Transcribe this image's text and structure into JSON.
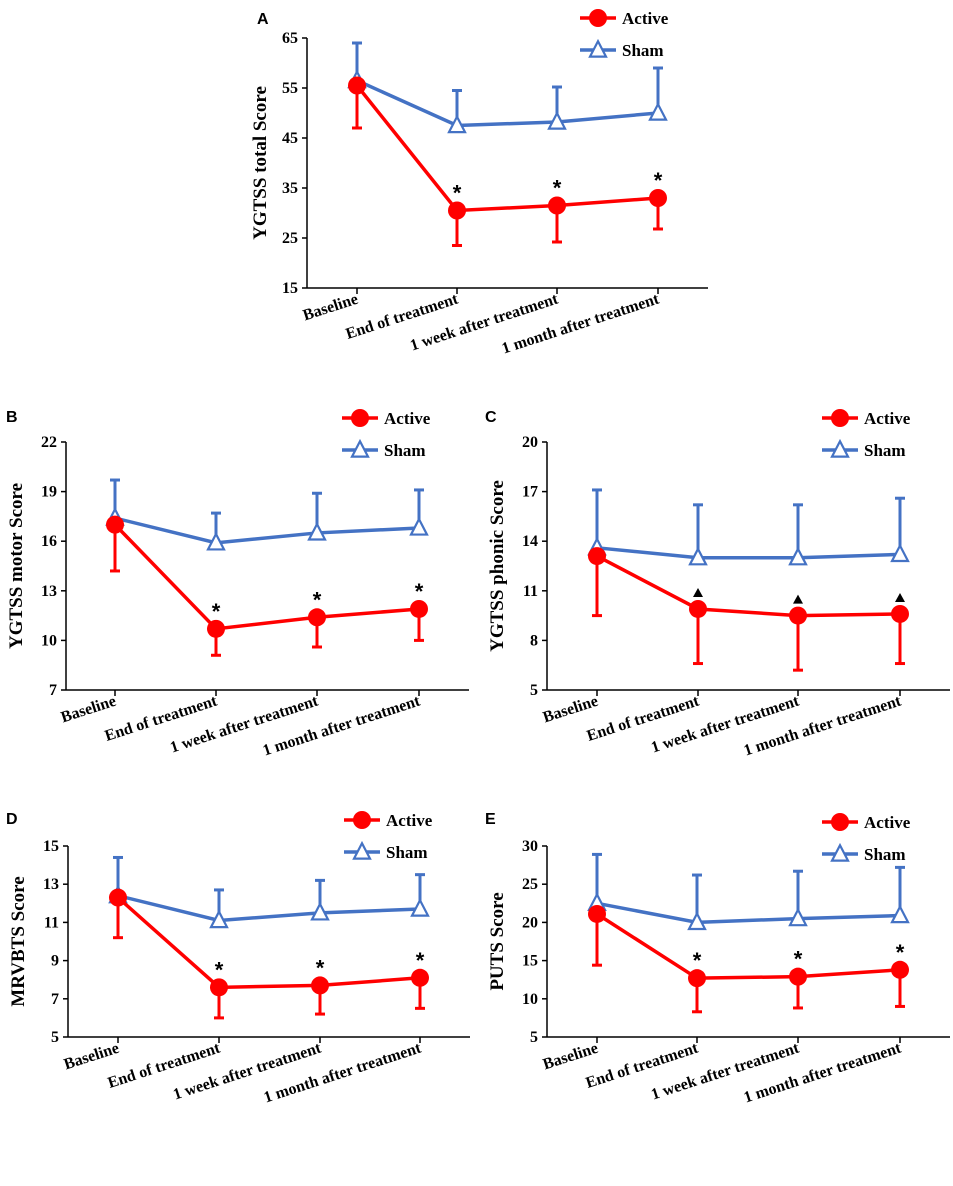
{
  "colors": {
    "active": "#ff0000",
    "sham": "#4472c4",
    "axis": "#000000"
  },
  "chart_data": [
    {
      "panel": "A",
      "type": "line",
      "ylabel": "YGTSS total Score",
      "ylim": [
        15,
        65
      ],
      "yticks": [
        15,
        25,
        35,
        45,
        55,
        65
      ],
      "categories": [
        "Baseline",
        "End of treatment",
        "1 week after treatment",
        "1 month after treatment"
      ],
      "series": [
        {
          "name": "Active",
          "marker": "circle",
          "errorbar": "down",
          "values": [
            55.5,
            30.5,
            31.5,
            33
          ],
          "errors": [
            8.5,
            7,
            7.3,
            6.2
          ]
        },
        {
          "name": "Sham",
          "marker": "triangle",
          "errorbar": "up",
          "values": [
            56.5,
            47.5,
            48.2,
            50
          ],
          "errors": [
            7.5,
            7,
            7,
            9
          ]
        }
      ],
      "annotations": [
        "",
        "*",
        "*",
        "*"
      ]
    },
    {
      "panel": "B",
      "type": "line",
      "ylabel": "YGTSS motor Score",
      "ylim": [
        7,
        22
      ],
      "yticks": [
        7,
        10,
        13,
        16,
        19,
        22
      ],
      "categories": [
        "Baseline",
        "End of treatment",
        "1 week after treatment",
        "1 month after treatment"
      ],
      "series": [
        {
          "name": "Active",
          "marker": "circle",
          "errorbar": "down",
          "values": [
            17,
            10.7,
            11.4,
            11.9
          ],
          "errors": [
            2.8,
            1.6,
            1.8,
            1.9
          ]
        },
        {
          "name": "Sham",
          "marker": "triangle",
          "errorbar": "up",
          "values": [
            17.4,
            15.9,
            16.5,
            16.8
          ],
          "errors": [
            2.3,
            1.8,
            2.4,
            2.3
          ]
        }
      ],
      "annotations": [
        "",
        "*",
        "*",
        "*"
      ]
    },
    {
      "panel": "C",
      "type": "line",
      "ylabel": "YGTSS phonic Score",
      "ylim": [
        5,
        20
      ],
      "yticks": [
        5,
        8,
        11,
        14,
        17,
        20
      ],
      "categories": [
        "Baseline",
        "End of treatment",
        "1 week after treatment",
        "1 month after treatment"
      ],
      "series": [
        {
          "name": "Active",
          "marker": "circle",
          "errorbar": "down",
          "values": [
            13.1,
            9.9,
            9.5,
            9.6
          ],
          "errors": [
            3.6,
            3.3,
            3.3,
            3
          ]
        },
        {
          "name": "Sham",
          "marker": "triangle",
          "errorbar": "up",
          "values": [
            13.6,
            13,
            13,
            13.2
          ],
          "errors": [
            3.5,
            3.2,
            3.2,
            3.4
          ]
        }
      ],
      "annotations": [
        "",
        "▲",
        "▲",
        "▲"
      ]
    },
    {
      "panel": "D",
      "type": "line",
      "ylabel": "MRVBTS Score",
      "ylim": [
        5,
        15
      ],
      "yticks": [
        5,
        7,
        9,
        11,
        13,
        15
      ],
      "categories": [
        "Baseline",
        "End of treatment",
        "1 week after treatment",
        "1 month after treatment"
      ],
      "series": [
        {
          "name": "Active",
          "marker": "circle",
          "errorbar": "down",
          "values": [
            12.3,
            7.6,
            7.7,
            8.1
          ],
          "errors": [
            2.1,
            1.6,
            1.5,
            1.6
          ]
        },
        {
          "name": "Sham",
          "marker": "triangle",
          "errorbar": "up",
          "values": [
            12.4,
            11.1,
            11.5,
            11.7
          ],
          "errors": [
            2,
            1.6,
            1.7,
            1.8
          ]
        }
      ],
      "annotations": [
        "",
        "*",
        "*",
        "*"
      ]
    },
    {
      "panel": "E",
      "type": "line",
      "ylabel": "PUTS Score",
      "ylim": [
        5,
        30
      ],
      "yticks": [
        5,
        10,
        15,
        20,
        25,
        30
      ],
      "categories": [
        "Baseline",
        "End of treatment",
        "1 week after treatment",
        "1 month after treatment"
      ],
      "series": [
        {
          "name": "Active",
          "marker": "circle",
          "errorbar": "down",
          "values": [
            21.1,
            12.7,
            12.9,
            13.8
          ],
          "errors": [
            6.7,
            4.4,
            4.1,
            4.8
          ]
        },
        {
          "name": "Sham",
          "marker": "triangle",
          "errorbar": "up",
          "values": [
            22.5,
            20,
            20.5,
            20.9
          ],
          "errors": [
            6.4,
            6.2,
            6.2,
            6.3
          ]
        }
      ],
      "annotations": [
        "",
        "*",
        "*",
        "*"
      ]
    }
  ]
}
